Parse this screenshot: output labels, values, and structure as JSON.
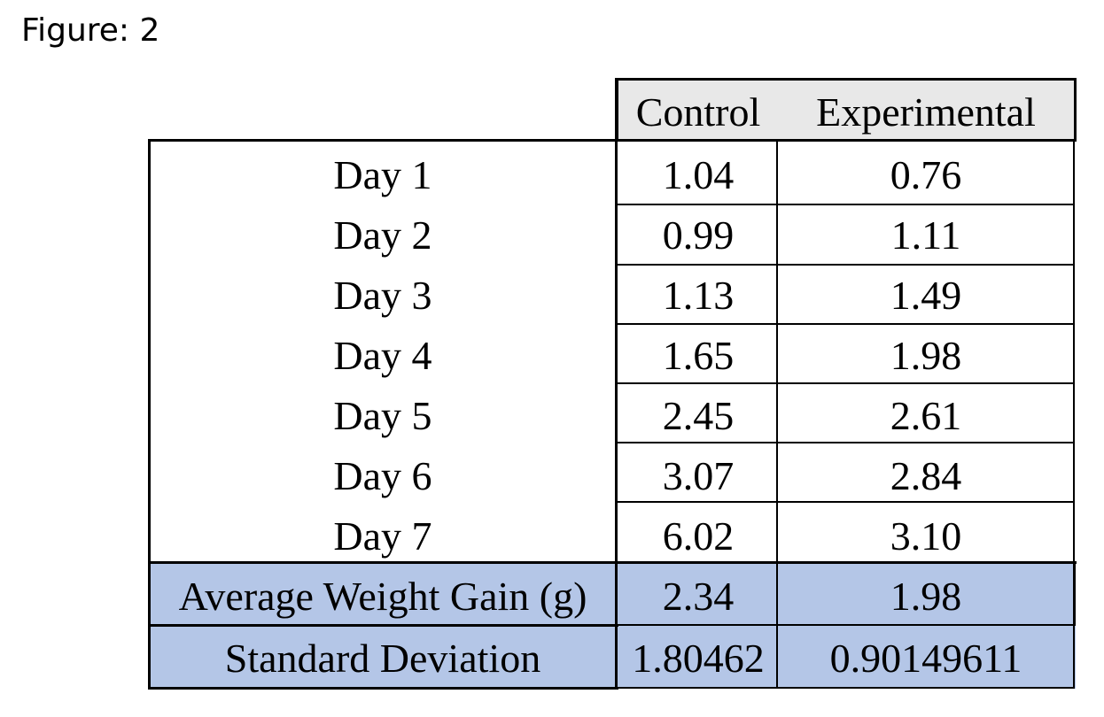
{
  "caption": "Figure: 2",
  "table": {
    "columns": [
      "Control",
      "Experimental"
    ],
    "rows": [
      {
        "label": "Day 1",
        "control": "1.04",
        "experimental": "0.76"
      },
      {
        "label": "Day 2",
        "control": "0.99",
        "experimental": "1.11"
      },
      {
        "label": "Day 3",
        "control": "1.13",
        "experimental": "1.49"
      },
      {
        "label": "Day 4",
        "control": "1.65",
        "experimental": "1.98"
      },
      {
        "label": "Day 5",
        "control": "2.45",
        "experimental": "2.61"
      },
      {
        "label": "Day 6",
        "control": "3.07",
        "experimental": "2.84"
      },
      {
        "label": "Day 7",
        "control": "6.02",
        "experimental": "3.10"
      }
    ],
    "summary": [
      {
        "label": "Average Weight Gain (g)",
        "control": "2.34",
        "experimental": "1.98"
      },
      {
        "label": "Standard Deviation",
        "control": "1.80462",
        "experimental": "0.90149611"
      }
    ]
  },
  "colors": {
    "header_fill": "#e8e8e8",
    "summary_fill": "#b4c6e7"
  }
}
